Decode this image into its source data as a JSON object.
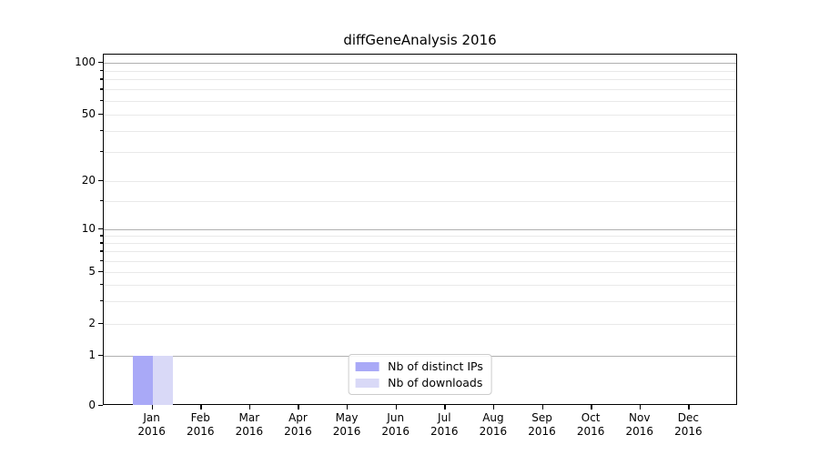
{
  "chart_data": {
    "type": "bar",
    "title": "diffGeneAnalysis 2016",
    "year_suffix": "2016",
    "categories": [
      "Jan",
      "Feb",
      "Mar",
      "Apr",
      "May",
      "Jun",
      "Jul",
      "Aug",
      "Sep",
      "Oct",
      "Nov",
      "Dec"
    ],
    "series": [
      {
        "name": "Nb of distinct IPs",
        "color": "#a9a9f7",
        "values": [
          1,
          0,
          0,
          0,
          0,
          0,
          0,
          0,
          0,
          0,
          0,
          0
        ]
      },
      {
        "name": "Nb of downloads",
        "color": "#d9d9f7",
        "values": [
          1,
          0,
          0,
          0,
          0,
          0,
          0,
          0,
          0,
          0,
          0,
          0
        ]
      }
    ],
    "xlabel": "",
    "ylabel": "",
    "yscale": "symlog",
    "ytick_values": [
      0,
      1,
      2,
      5,
      10,
      20,
      50,
      100
    ],
    "ytick_labels": [
      "0",
      "1",
      "2",
      "5",
      "10",
      "20",
      "50",
      "100"
    ],
    "ylim": [
      0,
      115
    ],
    "grid": {
      "orientation": "horizontal",
      "major": true,
      "minor": true
    },
    "major_grid_values": [
      1,
      10,
      100
    ],
    "minor_grid_values": [
      2,
      3,
      4,
      5,
      6,
      7,
      8,
      9,
      15,
      20,
      30,
      40,
      50,
      60,
      70,
      80,
      90
    ],
    "legend_position": "inside-bottom-center",
    "colors": {
      "major_grid": "#b0b0b0",
      "minor_grid": "#e9e9e9",
      "spine": "#000000",
      "text": "#000000",
      "legend_border": "#cccccc"
    }
  }
}
